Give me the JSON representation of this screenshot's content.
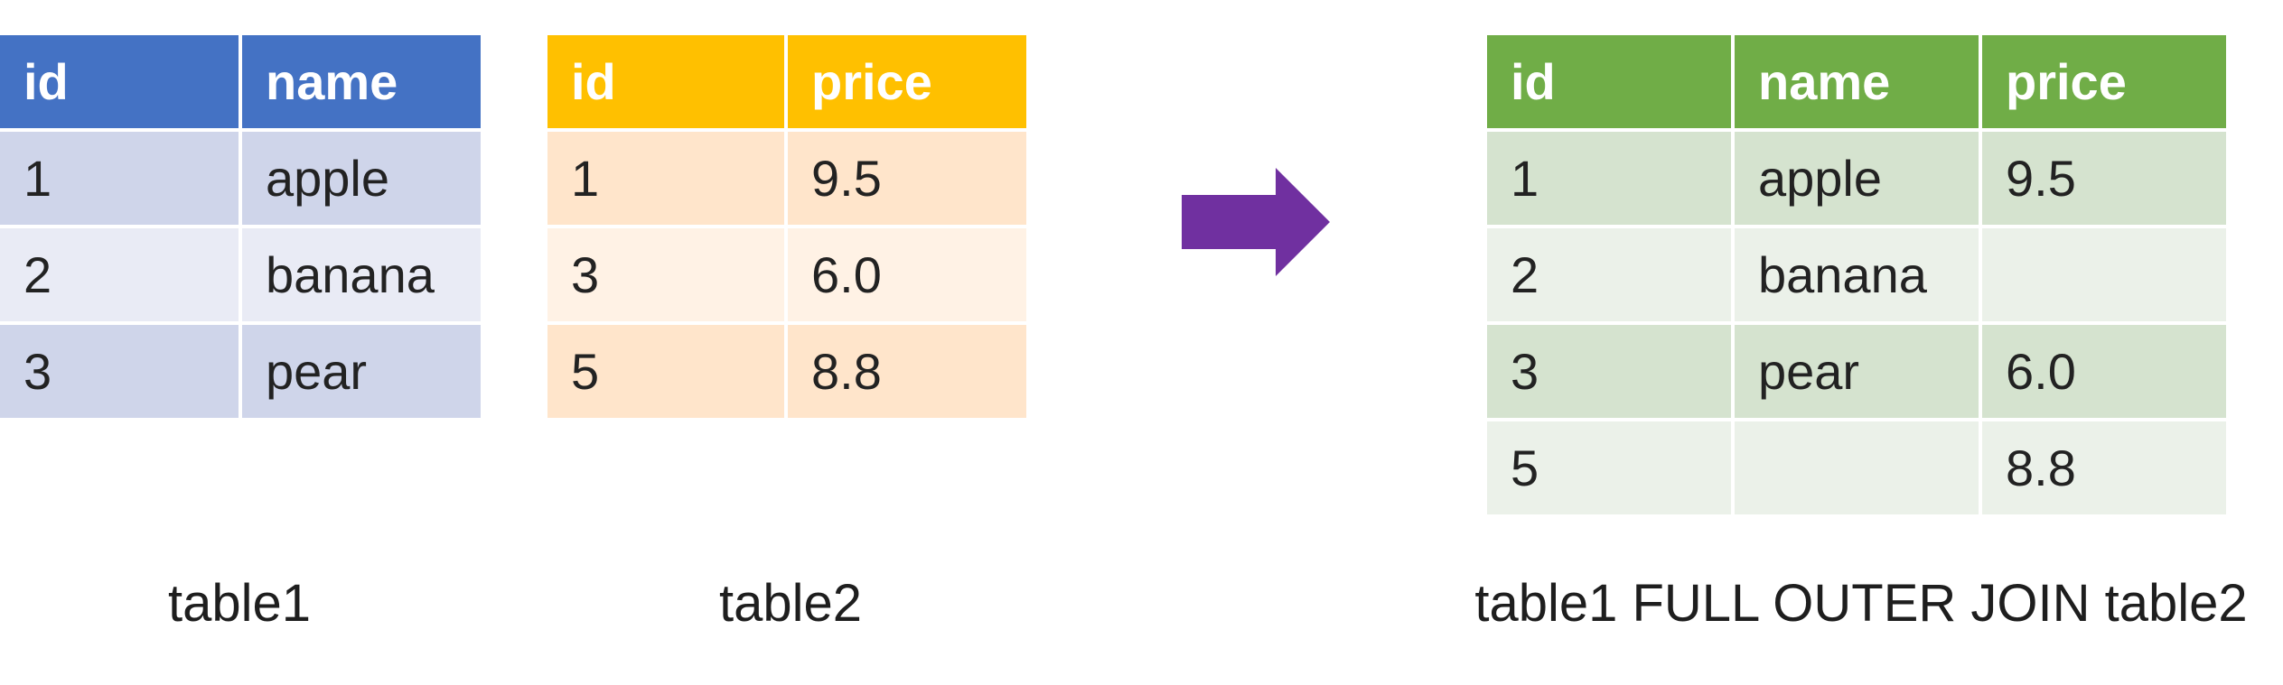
{
  "arrow_color": "#7030a0",
  "table1": {
    "caption": "table1",
    "header_color": "#4472c4",
    "columns": [
      "id",
      "name"
    ],
    "rows": [
      [
        "1",
        "apple"
      ],
      [
        "2",
        "banana"
      ],
      [
        "3",
        "pear"
      ]
    ]
  },
  "table2": {
    "caption": "table2",
    "header_color": "#ffc000",
    "columns": [
      "id",
      "price"
    ],
    "rows": [
      [
        "1",
        "9.5"
      ],
      [
        "3",
        "6.0"
      ],
      [
        "5",
        "8.8"
      ]
    ]
  },
  "result": {
    "caption": "table1 FULL OUTER JOIN table2",
    "header_color": "#70ad47",
    "columns": [
      "id",
      "name",
      "price"
    ],
    "rows": [
      [
        "1",
        "apple",
        "9.5"
      ],
      [
        "2",
        "banana",
        ""
      ],
      [
        "3",
        "pear",
        "6.0"
      ],
      [
        "5",
        "",
        "8.8"
      ]
    ]
  }
}
